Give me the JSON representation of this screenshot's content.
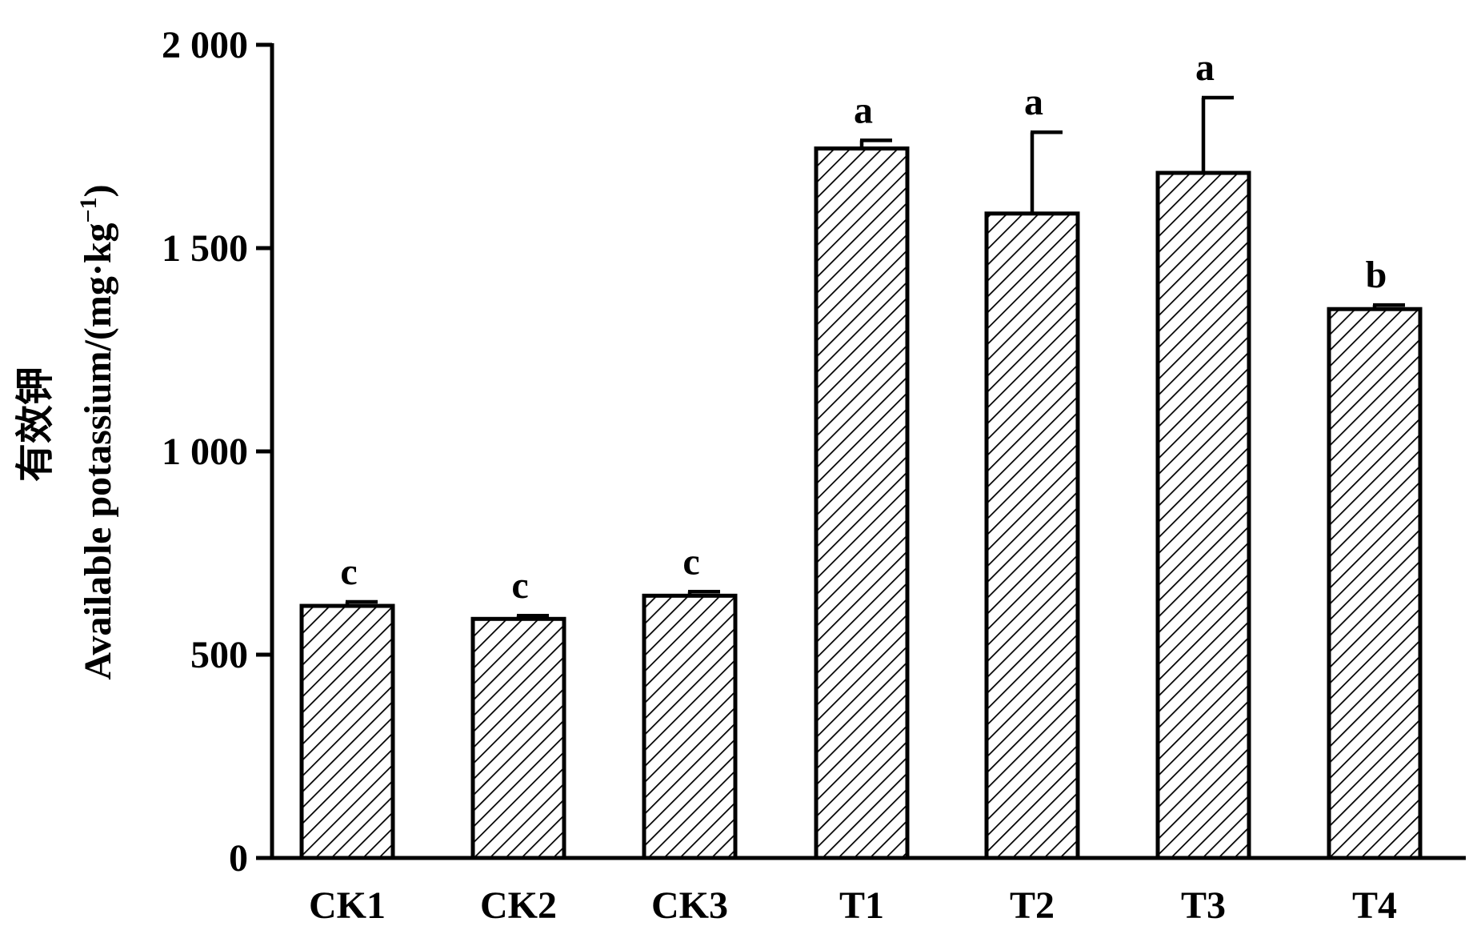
{
  "chart_data": {
    "type": "bar",
    "categories": [
      "CK1",
      "CK2",
      "CK3",
      "T1",
      "T2",
      "T3",
      "T4"
    ],
    "values": [
      620,
      588,
      645,
      1745,
      1585,
      1685,
      1350
    ],
    "errors": [
      10,
      8,
      10,
      20,
      200,
      185,
      10
    ],
    "significance": [
      "c",
      "c",
      "c",
      "a",
      "a",
      "a",
      "b"
    ],
    "ylabel_cn": "有效钾",
    "ylabel": "Available potassium/(mg·kg",
    "ylabel_sup": "−1",
    "ylabel_close": ")",
    "xlabel": "",
    "ylim": [
      0,
      2000
    ],
    "yticks": [
      0,
      500,
      1000,
      1500,
      2000
    ],
    "ytick_labels": [
      "0",
      "500",
      "1 000",
      "1 500",
      "2 000"
    ],
    "bar_pattern": "diagonal-hatch",
    "colors": {
      "bar_fill": "#ffffff",
      "hatch": "#000000",
      "stroke": "#000000"
    }
  }
}
